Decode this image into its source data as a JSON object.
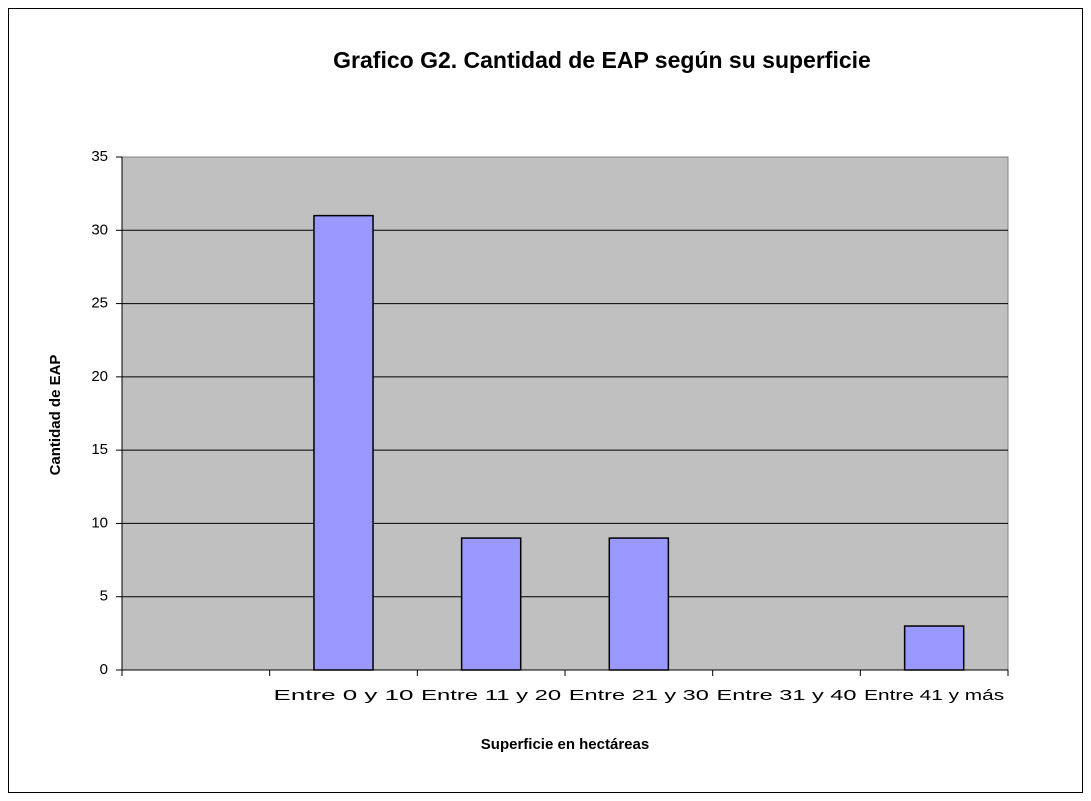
{
  "chart_data": {
    "type": "bar",
    "title": "Grafico G2. Cantidad de EAP según su superficie",
    "x_label": "Superficie en hectáreas",
    "y_label": "Cantidad de EAP",
    "categories": [
      null,
      "Entre 0 y 10",
      "Entre 11 y 20",
      "Entre 21 y 30",
      "Entre 31 y 40",
      "Entre 41 y más"
    ],
    "values": [
      null,
      31,
      9,
      9,
      0,
      3
    ],
    "color": "#9999ff",
    "ylim": [
      0,
      35
    ],
    "yticks": [
      0,
      5,
      10,
      15,
      20,
      25,
      30,
      35
    ],
    "grid": true
  }
}
